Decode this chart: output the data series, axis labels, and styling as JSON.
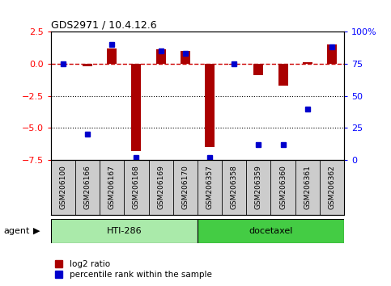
{
  "title": "GDS2971 / 10.4.12.6",
  "samples": [
    "GSM206100",
    "GSM206166",
    "GSM206167",
    "GSM206168",
    "GSM206169",
    "GSM206170",
    "GSM206357",
    "GSM206358",
    "GSM206359",
    "GSM206360",
    "GSM206361",
    "GSM206362"
  ],
  "log2_ratio": [
    0.0,
    -0.2,
    1.2,
    -6.8,
    1.1,
    1.0,
    -6.5,
    -0.05,
    -0.9,
    -1.7,
    0.1,
    1.5
  ],
  "percentile": [
    75,
    20,
    90,
    2,
    85,
    83,
    2,
    75,
    12,
    12,
    40,
    88
  ],
  "ylim": [
    -7.5,
    2.5
  ],
  "yticks_left": [
    -7.5,
    -5.0,
    -2.5,
    0.0,
    2.5
  ],
  "yticks_right": [
    0,
    25,
    50,
    75,
    100
  ],
  "bar_color": "#aa0000",
  "dot_color": "#0000cc",
  "hline_color": "#cc0000",
  "grid_color": "#000000",
  "agent_groups": [
    {
      "label": "HTI-286",
      "start": 0,
      "end": 5,
      "color": "#aaeaaa"
    },
    {
      "label": "docetaxel",
      "start": 6,
      "end": 11,
      "color": "#44cc44"
    }
  ],
  "legend_bar_label": "log2 ratio",
  "legend_dot_label": "percentile rank within the sample",
  "agent_label": "agent",
  "background_color": "#ffffff",
  "plot_bg_color": "#ffffff",
  "label_bg_color": "#cccccc",
  "bar_width": 0.4
}
